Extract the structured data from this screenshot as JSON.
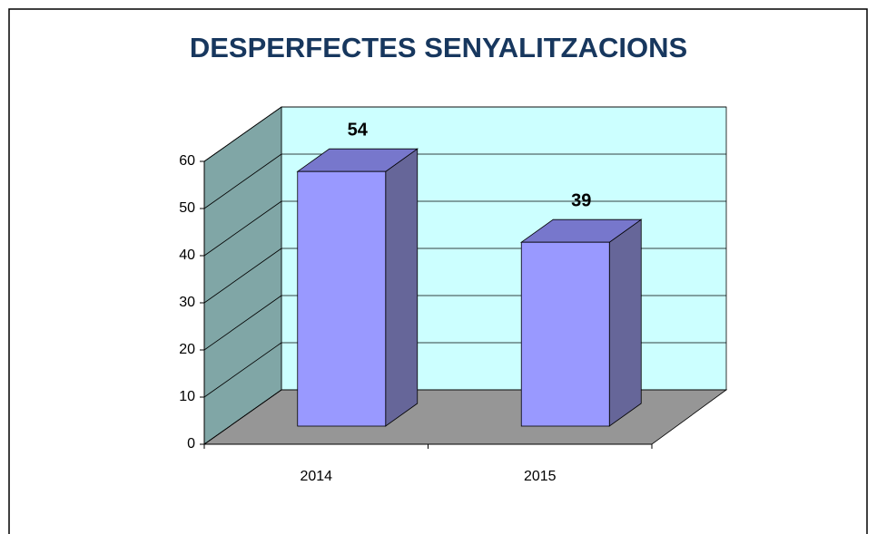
{
  "chart_data": {
    "type": "bar",
    "title": "DESPERFECTES SENYALITZACIONS",
    "categories": [
      "2014",
      "2015"
    ],
    "values": [
      54,
      39
    ],
    "ylim": [
      0,
      60
    ],
    "yticks": [
      0,
      10,
      20,
      30,
      40,
      50,
      60
    ],
    "grid": true,
    "color": "#9999ff"
  }
}
